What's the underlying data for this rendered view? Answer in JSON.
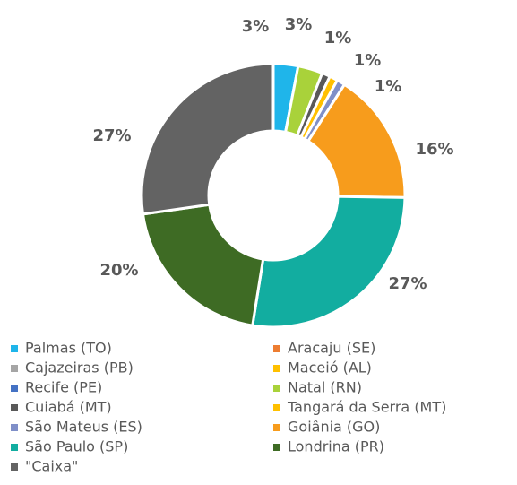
{
  "chart_data": {
    "type": "donut",
    "categories": [
      "Palmas (TO)",
      "Aracaju (SE)",
      "Cajazeiras (PB)",
      "Maceió (AL)",
      "Recife (PE)",
      "Natal (RN)",
      "Cuiabá (MT)",
      "Tangará da Serra (MT)",
      "São Mateus (ES)",
      "Goiânia (GO)",
      "São Paulo (SP)",
      "Londrina (PR)",
      "\"Caixa\""
    ],
    "values": [
      3,
      0,
      0,
      0,
      0,
      3,
      1,
      1,
      1,
      16,
      27,
      20,
      27
    ],
    "value_labels": [
      "3%",
      null,
      null,
      null,
      null,
      "3%",
      "1%",
      "1%",
      "1%",
      "16%",
      "27%",
      "20%",
      "27%"
    ],
    "colors": [
      "#1fb5ea",
      "#ed7d31",
      "#a5a5a5",
      "#ffc000",
      "#4472c4",
      "#a9d23a",
      "#595959",
      "#ffc000",
      "#7f8fc8",
      "#f79c1c",
      "#12ada0",
      "#3e6b24",
      "#636363"
    ],
    "legend": "bottom"
  }
}
